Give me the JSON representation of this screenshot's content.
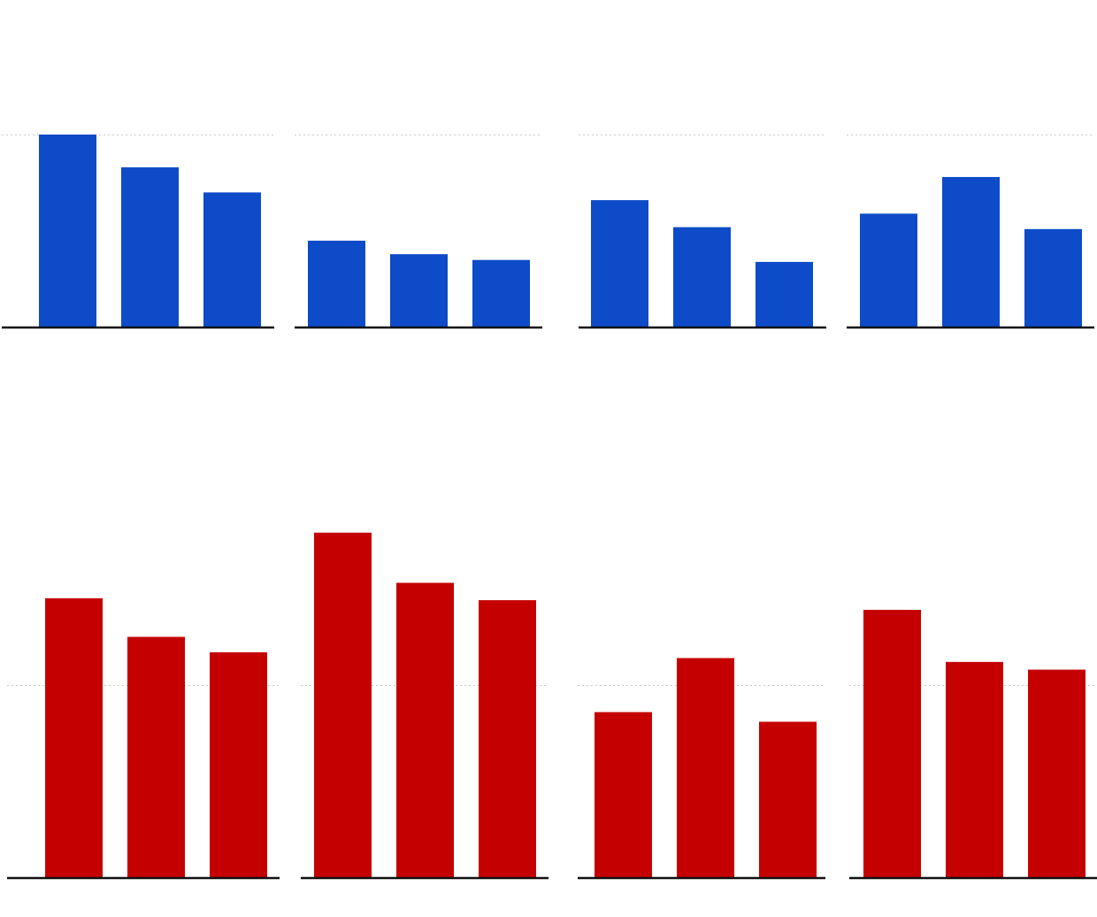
{
  "chart_data": [
    {
      "type": "bar",
      "categories": [
        null,
        null,
        null
      ],
      "values": [
        100,
        83,
        70
      ],
      "color": "#0d4bc8",
      "ylim": [
        0,
        150
      ],
      "yticks": [
        100
      ],
      "grid": true
    },
    {
      "type": "bar",
      "categories": [
        null,
        null,
        null
      ],
      "values": [
        45,
        38,
        35
      ],
      "color": "#0d4bc8",
      "ylim": [
        0,
        150
      ],
      "yticks": [
        100
      ],
      "grid": true
    },
    {
      "type": "bar",
      "categories": [
        null,
        null,
        null
      ],
      "values": [
        66,
        52,
        34
      ],
      "color": "#0d4bc8",
      "ylim": [
        0,
        150
      ],
      "yticks": [
        100
      ],
      "grid": true
    },
    {
      "type": "bar",
      "categories": [
        null,
        null,
        null
      ],
      "values": [
        59,
        78,
        51
      ],
      "color": "#0d4bc8",
      "ylim": [
        0,
        150
      ],
      "yticks": [
        100
      ],
      "grid": true
    },
    {
      "type": "bar",
      "categories": [
        null,
        null,
        null
      ],
      "values": [
        145,
        125,
        117
      ],
      "color": "#c50000",
      "ylim": [
        0,
        200
      ],
      "yticks": [
        100
      ],
      "grid": true
    },
    {
      "type": "bar",
      "categories": [
        null,
        null,
        null
      ],
      "values": [
        179,
        153,
        144
      ],
      "color": "#c50000",
      "ylim": [
        0,
        200
      ],
      "yticks": [
        100
      ],
      "grid": true
    },
    {
      "type": "bar",
      "categories": [
        null,
        null,
        null
      ],
      "values": [
        86,
        114,
        81
      ],
      "color": "#c50000",
      "ylim": [
        0,
        200
      ],
      "yticks": [
        100
      ],
      "grid": true
    },
    {
      "type": "bar",
      "categories": [
        null,
        null,
        null
      ],
      "values": [
        139,
        112,
        108
      ],
      "color": "#c50000",
      "ylim": [
        0,
        200
      ],
      "yticks": [
        100
      ],
      "grid": true
    }
  ]
}
